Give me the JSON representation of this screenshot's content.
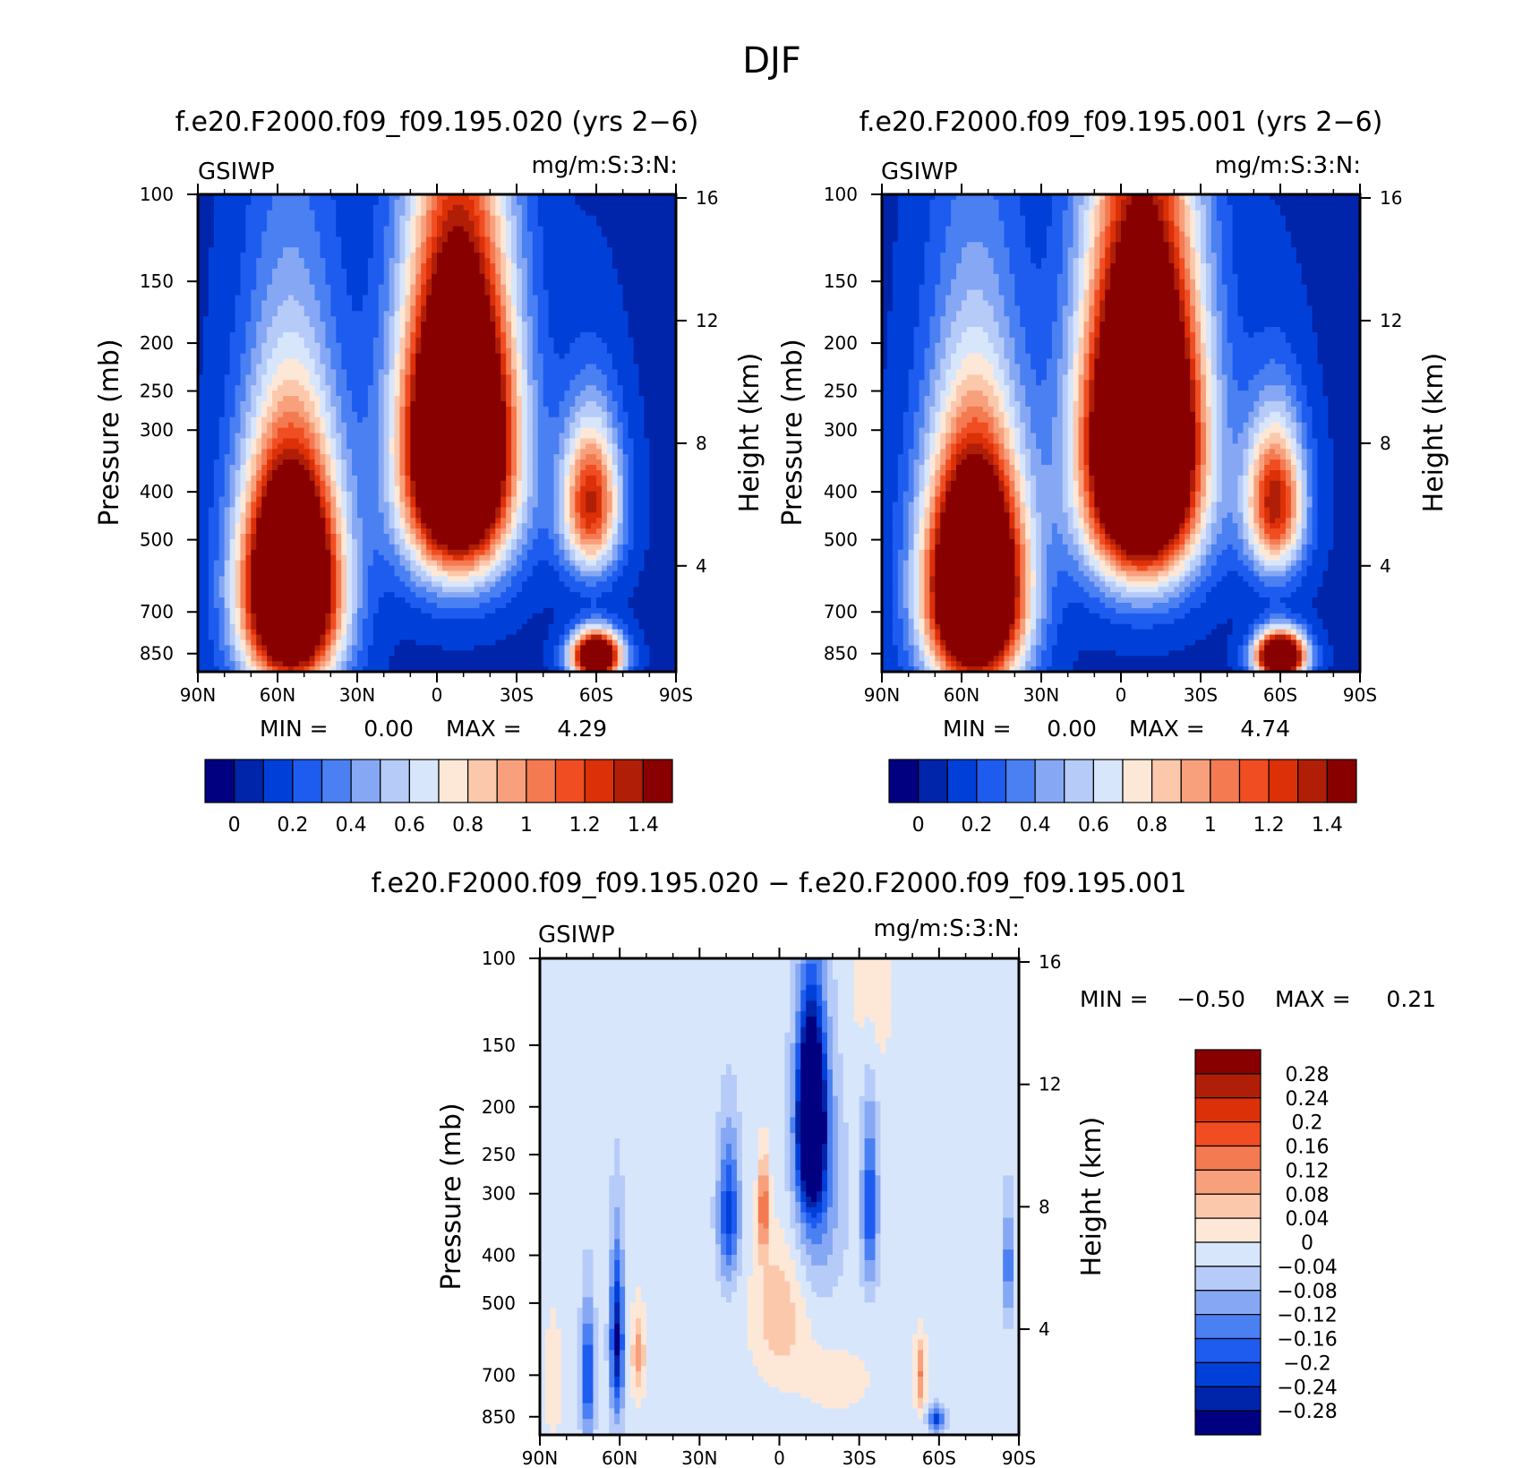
{
  "figure_title": "DJF",
  "colors": {
    "top_scale": [
      "#000080",
      "#0024aa",
      "#0040d8",
      "#1e5cf0",
      "#4a80f2",
      "#86a8f4",
      "#b6cbf8",
      "#d8e6fc",
      "#fde8d8",
      "#fcc8ac",
      "#f8a07c",
      "#f47a52",
      "#f04e22",
      "#dc3008",
      "#b01e08",
      "#880000"
    ],
    "diff_scale": [
      "#000080",
      "#0024aa",
      "#0040d8",
      "#1e5cf0",
      "#4a80f2",
      "#86a8f4",
      "#b6cbf8",
      "#d8e6fc",
      "#fde8d8",
      "#fcc8ac",
      "#f8a07c",
      "#f47a52",
      "#f04e22",
      "#dc3008",
      "#b01e08",
      "#880000"
    ]
  },
  "chart_data": [
    {
      "type": "heatmap",
      "id": "panel-case",
      "title": "f.e20.F2000.f09_f09.195.020 (yrs 2−6)",
      "variable": "GSIWP",
      "units": "mg/m:S:3:N:",
      "xlabel": "",
      "ylabel": "Pressure (mb)",
      "y2label": "Height (km)",
      "x_ticks": [
        "90N",
        "60N",
        "30N",
        "0",
        "30S",
        "60S",
        "90S"
      ],
      "y_ticks": [
        100,
        150,
        200,
        250,
        300,
        400,
        500,
        700,
        850
      ],
      "y_range": [
        100,
        925
      ],
      "y2_ticks": [
        16,
        12,
        8,
        4
      ],
      "min_text": "MIN =     0.00",
      "max_text": "MAX =     4.29",
      "colorbar_labels": [
        "0",
        "0.2",
        "0.4",
        "0.6",
        "0.8",
        "1",
        "1.2",
        "1.4"
      ],
      "features": [
        {
          "lat": 55,
          "p": 620,
          "sx": 18,
          "sy": 340,
          "amp": 2.6
        },
        {
          "lat": -8,
          "p": 320,
          "sx": 20,
          "sy": 230,
          "amp": 2.9
        },
        {
          "lat": -58,
          "p": 420,
          "sx": 11,
          "sy": 150,
          "amp": 1.25
        },
        {
          "lat": -60,
          "p": 860,
          "sx": 9,
          "sy": 95,
          "amp": 2.2
        }
      ]
    },
    {
      "type": "heatmap",
      "id": "panel-control",
      "title": "f.e20.F2000.f09_f09.195.001 (yrs 2−6)",
      "variable": "GSIWP",
      "units": "mg/m:S:3:N:",
      "xlabel": "",
      "ylabel": "Pressure (mb)",
      "y2label": "Height (km)",
      "x_ticks": [
        "90N",
        "60N",
        "30N",
        "0",
        "30S",
        "60S",
        "90S"
      ],
      "y_ticks": [
        100,
        150,
        200,
        250,
        300,
        400,
        500,
        700,
        850
      ],
      "y_range": [
        100,
        925
      ],
      "y2_ticks": [
        16,
        12,
        8,
        4
      ],
      "min_text": "MIN =     0.00",
      "max_text": "MAX =     4.74",
      "colorbar_labels": [
        "0",
        "0.2",
        "0.4",
        "0.6",
        "0.8",
        "1",
        "1.2",
        "1.4"
      ],
      "features": [
        {
          "lat": 55,
          "p": 620,
          "sx": 18,
          "sy": 340,
          "amp": 2.7
        },
        {
          "lat": -8,
          "p": 320,
          "sx": 21,
          "sy": 240,
          "amp": 3.1
        },
        {
          "lat": -58,
          "p": 420,
          "sx": 11,
          "sy": 150,
          "amp": 1.3
        },
        {
          "lat": -60,
          "p": 860,
          "sx": 9,
          "sy": 95,
          "amp": 2.3
        }
      ]
    },
    {
      "type": "heatmap",
      "id": "panel-diff",
      "title": "f.e20.F2000.f09_f09.195.020 − f.e20.F2000.f09_f09.195.001",
      "variable": "GSIWP",
      "units": "mg/m:S:3:N:",
      "xlabel": "",
      "ylabel": "Pressure (mb)",
      "y2label": "Height (km)",
      "x_ticks": [
        "90N",
        "60N",
        "30N",
        "0",
        "30S",
        "60S",
        "90S"
      ],
      "y_ticks": [
        100,
        150,
        200,
        250,
        300,
        400,
        500,
        700,
        850
      ],
      "y_range": [
        100,
        925
      ],
      "y2_ticks": [
        16,
        12,
        8,
        4
      ],
      "min_text": "MIN =    −0.50",
      "max_text": "MAX =     0.21",
      "colorbar_labels": [
        "0.28",
        "0.24",
        "0.2",
        "0.16",
        "0.12",
        "0.08",
        "0.04",
        "0",
        "−0.04",
        "−0.08",
        "−0.12",
        "−0.16",
        "−0.2",
        "−0.24",
        "−0.28"
      ],
      "features": [
        {
          "lat": -12,
          "p": 210,
          "sx": 5,
          "sy": 90,
          "amp": -0.5
        },
        {
          "lat": -14,
          "p": 300,
          "sx": 9,
          "sy": 160,
          "amp": -0.12
        },
        {
          "lat": 19,
          "p": 330,
          "sx": 4,
          "sy": 110,
          "amp": -0.2
        },
        {
          "lat": 61,
          "p": 600,
          "sx": 2.5,
          "sy": 230,
          "amp": -0.27
        },
        {
          "lat": 72,
          "p": 700,
          "sx": 2.5,
          "sy": 210,
          "amp": -0.2
        },
        {
          "lat": -34,
          "p": 320,
          "sx": 3,
          "sy": 130,
          "amp": -0.18
        },
        {
          "lat": -86,
          "p": 420,
          "sx": 2,
          "sy": 110,
          "amp": -0.14
        },
        {
          "lat": -59,
          "p": 860,
          "sx": 3,
          "sy": 50,
          "amp": -0.2
        },
        {
          "lat": 6,
          "p": 320,
          "sx": 2,
          "sy": 70,
          "amp": 0.18
        },
        {
          "lat": 0,
          "p": 520,
          "sx": 10,
          "sy": 170,
          "amp": 0.09
        },
        {
          "lat": 53,
          "p": 640,
          "sx": 2.5,
          "sy": 130,
          "amp": 0.12
        },
        {
          "lat": -53,
          "p": 700,
          "sx": 2,
          "sy": 120,
          "amp": 0.14
        },
        {
          "lat": -22,
          "p": 720,
          "sx": 18,
          "sy": 150,
          "amp": 0.03
        },
        {
          "lat": 85,
          "p": 720,
          "sx": 3,
          "sy": 200,
          "amp": 0.06
        },
        {
          "lat": -35,
          "p": 110,
          "sx": 8,
          "sy": 60,
          "amp": 0.05
        }
      ]
    }
  ]
}
